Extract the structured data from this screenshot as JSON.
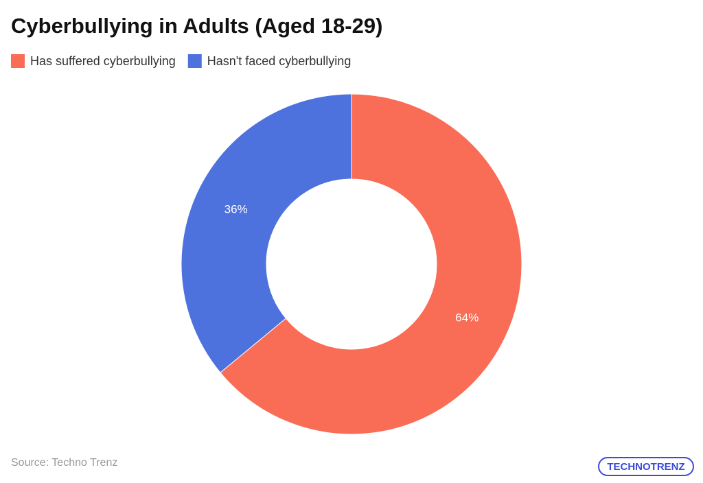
{
  "chart_data": {
    "type": "donut",
    "title": "Cyberbullying in Adults (Aged 18-29)",
    "categories": [
      "Has suffered cyberbullying",
      "Hasn't faced cyberbullying"
    ],
    "values": [
      64,
      36
    ],
    "value_labels": [
      "64%",
      "36%"
    ],
    "colors": [
      "#f96c56",
      "#4d72de"
    ],
    "legend": "top-left",
    "source": "Source: Techno Trenz",
    "logo": "TECHNOTRENZ"
  }
}
